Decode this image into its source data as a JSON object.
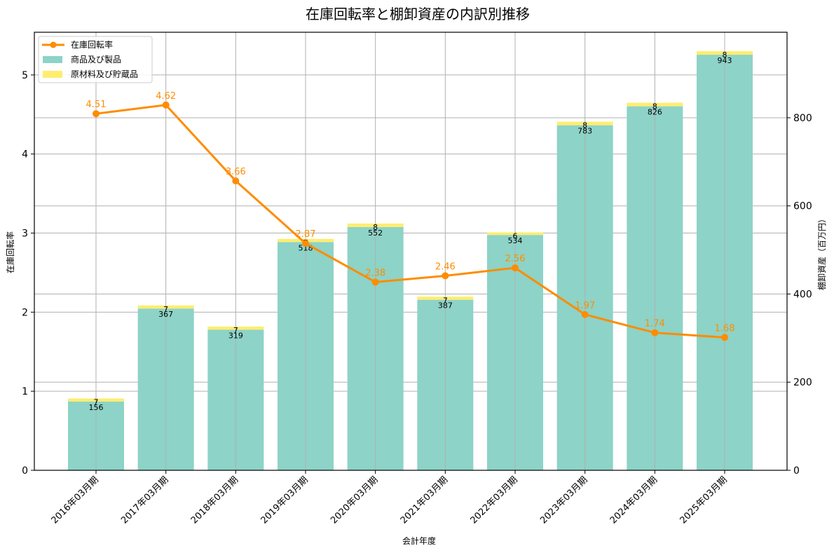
{
  "chart_data": {
    "type": "bar+line",
    "title": "在庫回転率と棚卸資産の内訳別推移",
    "xlabel": "会計年度",
    "ylabel_left": "在庫回転率",
    "ylabel_right": "棚卸資産（百万円）",
    "categories": [
      "2016年03月期",
      "2017年03月期",
      "2018年03月期",
      "2019年03月期",
      "2020年03月期",
      "2021年03月期",
      "2022年03月期",
      "2023年03月期",
      "2024年03月期",
      "2025年03月期"
    ],
    "series": [
      {
        "name": "在庫回転率",
        "type": "line",
        "axis": "left",
        "color": "#ff8c00",
        "values": [
          4.51,
          4.62,
          3.66,
          2.87,
          2.38,
          2.46,
          2.56,
          1.97,
          1.74,
          1.68
        ]
      },
      {
        "name": "商品及び製品",
        "type": "bar",
        "axis": "right",
        "stack": "inv",
        "color": "#8dd3c7",
        "values": [
          156,
          367,
          319,
          518,
          552,
          387,
          534,
          783,
          826,
          943
        ]
      },
      {
        "name": "原材料及び貯蔵品",
        "type": "bar",
        "axis": "right",
        "stack": "inv",
        "color": "#ffed6f",
        "values": [
          7,
          7,
          7,
          7,
          8,
          7,
          6,
          8,
          8,
          8
        ]
      }
    ],
    "ylim_left": [
      0,
      5.54
    ],
    "ylim_right": [
      0,
      994
    ],
    "yticks_left": [
      0,
      1,
      2,
      3,
      4,
      5
    ],
    "yticks_right": [
      0,
      200,
      400,
      600,
      800
    ],
    "grid": true,
    "legend_position": "upper left"
  },
  "legend": {
    "items": [
      {
        "label": "在庫回転率",
        "kind": "line",
        "color": "#ff8c00"
      },
      {
        "label": "商品及び製品",
        "kind": "patch",
        "color": "#8dd3c7"
      },
      {
        "label": "原材料及び貯蔵品",
        "kind": "patch",
        "color": "#ffed6f"
      }
    ]
  }
}
